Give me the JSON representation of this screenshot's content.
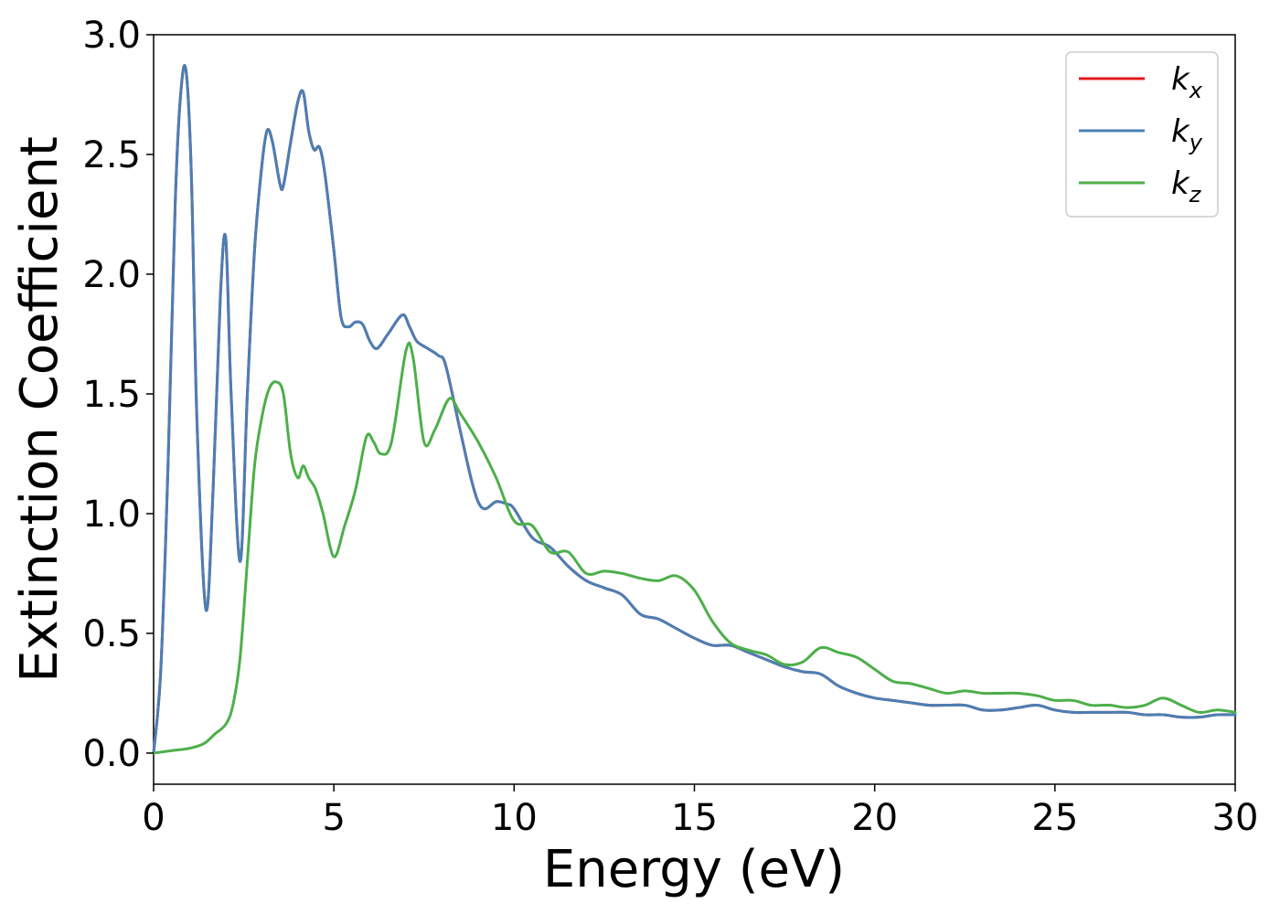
{
  "chart_data": {
    "type": "line",
    "xlabel": "Energy (eV)",
    "ylabel": "Extinction Coefficient",
    "xlim": [
      0,
      30
    ],
    "ylim": [
      -0.13,
      3.0
    ],
    "xticks": [
      0,
      5,
      10,
      15,
      20,
      25,
      30
    ],
    "xtick_labels": [
      "0",
      "5",
      "10",
      "15",
      "20",
      "25",
      "30"
    ],
    "yticks": [
      0.0,
      0.5,
      1.0,
      1.5,
      2.0,
      2.5,
      3.0
    ],
    "ytick_labels": [
      "0.0",
      "0.5",
      "1.0",
      "1.5",
      "2.0",
      "2.5",
      "3.0"
    ],
    "grid": false,
    "legend_position": "top-right",
    "series": [
      {
        "name": "k_x",
        "legend_base": "k",
        "legend_sub": "x",
        "color": "#e41a1c",
        "x": [
          0,
          0.2,
          0.4,
          0.6,
          0.75,
          0.9,
          1.05,
          1.2,
          1.45,
          1.65,
          1.85,
          2.0,
          2.15,
          2.4,
          2.6,
          2.8,
          3.0,
          3.15,
          3.3,
          3.5,
          3.6,
          3.8,
          4.0,
          4.15,
          4.3,
          4.45,
          4.6,
          4.75,
          5.0,
          5.2,
          5.4,
          5.6,
          5.8,
          6.0,
          6.2,
          6.5,
          6.9,
          7.1,
          7.3,
          7.6,
          7.9,
          8.1,
          8.5,
          8.8,
          9.0,
          9.2,
          9.5,
          9.8,
          10.0,
          10.5,
          11.0,
          11.5,
          12.0,
          12.5,
          13.0,
          13.5,
          14.0,
          14.5,
          15.0,
          15.5,
          16.0,
          16.5,
          17.0,
          17.5,
          18.0,
          18.5,
          19.0,
          19.5,
          20.0,
          20.5,
          21.0,
          21.5,
          22.0,
          22.5,
          23.0,
          23.5,
          24.0,
          24.5,
          25.0,
          25.5,
          26.0,
          26.5,
          27.0,
          27.5,
          28.0,
          28.5,
          29.0,
          29.5,
          30.0
        ],
        "y": [
          0.0,
          0.35,
          1.2,
          2.3,
          2.75,
          2.85,
          2.4,
          1.4,
          0.6,
          1.1,
          1.9,
          2.15,
          1.5,
          0.8,
          1.5,
          2.1,
          2.45,
          2.6,
          2.55,
          2.38,
          2.37,
          2.55,
          2.72,
          2.76,
          2.6,
          2.52,
          2.53,
          2.42,
          2.1,
          1.82,
          1.78,
          1.8,
          1.79,
          1.72,
          1.69,
          1.75,
          1.83,
          1.78,
          1.72,
          1.69,
          1.66,
          1.62,
          1.35,
          1.15,
          1.05,
          1.02,
          1.05,
          1.04,
          1.02,
          0.9,
          0.86,
          0.78,
          0.72,
          0.69,
          0.66,
          0.58,
          0.56,
          0.52,
          0.48,
          0.45,
          0.45,
          0.42,
          0.39,
          0.36,
          0.34,
          0.33,
          0.28,
          0.25,
          0.23,
          0.22,
          0.21,
          0.2,
          0.2,
          0.2,
          0.18,
          0.18,
          0.19,
          0.2,
          0.18,
          0.17,
          0.17,
          0.17,
          0.17,
          0.16,
          0.16,
          0.15,
          0.15,
          0.16,
          0.16
        ]
      },
      {
        "name": "k_y",
        "legend_base": "k",
        "legend_sub": "y",
        "color": "#4a7fb5",
        "x": [
          0,
          0.2,
          0.4,
          0.6,
          0.75,
          0.9,
          1.05,
          1.2,
          1.45,
          1.65,
          1.85,
          2.0,
          2.15,
          2.4,
          2.6,
          2.8,
          3.0,
          3.15,
          3.3,
          3.5,
          3.6,
          3.8,
          4.0,
          4.15,
          4.3,
          4.45,
          4.6,
          4.75,
          5.0,
          5.2,
          5.4,
          5.6,
          5.8,
          6.0,
          6.2,
          6.5,
          6.9,
          7.1,
          7.3,
          7.6,
          7.9,
          8.1,
          8.5,
          8.8,
          9.0,
          9.2,
          9.5,
          9.8,
          10.0,
          10.5,
          11.0,
          11.5,
          12.0,
          12.5,
          13.0,
          13.5,
          14.0,
          14.5,
          15.0,
          15.5,
          16.0,
          16.5,
          17.0,
          17.5,
          18.0,
          18.5,
          19.0,
          19.5,
          20.0,
          20.5,
          21.0,
          21.5,
          22.0,
          22.5,
          23.0,
          23.5,
          24.0,
          24.5,
          25.0,
          25.5,
          26.0,
          26.5,
          27.0,
          27.5,
          28.0,
          28.5,
          29.0,
          29.5,
          30.0
        ],
        "y": [
          0.0,
          0.35,
          1.2,
          2.3,
          2.75,
          2.85,
          2.4,
          1.4,
          0.6,
          1.1,
          1.9,
          2.15,
          1.5,
          0.8,
          1.5,
          2.1,
          2.45,
          2.6,
          2.55,
          2.38,
          2.37,
          2.55,
          2.72,
          2.76,
          2.6,
          2.52,
          2.53,
          2.42,
          2.1,
          1.82,
          1.78,
          1.8,
          1.79,
          1.72,
          1.69,
          1.75,
          1.83,
          1.78,
          1.72,
          1.69,
          1.66,
          1.62,
          1.35,
          1.15,
          1.05,
          1.02,
          1.05,
          1.04,
          1.02,
          0.9,
          0.86,
          0.78,
          0.72,
          0.69,
          0.66,
          0.58,
          0.56,
          0.52,
          0.48,
          0.45,
          0.45,
          0.42,
          0.39,
          0.36,
          0.34,
          0.33,
          0.28,
          0.25,
          0.23,
          0.22,
          0.21,
          0.2,
          0.2,
          0.2,
          0.18,
          0.18,
          0.19,
          0.2,
          0.18,
          0.17,
          0.17,
          0.17,
          0.17,
          0.16,
          0.16,
          0.15,
          0.15,
          0.16,
          0.16
        ]
      },
      {
        "name": "k_z",
        "legend_base": "k",
        "legend_sub": "z",
        "color": "#4daf4a",
        "x": [
          0,
          0.5,
          1.0,
          1.4,
          1.7,
          2.0,
          2.2,
          2.4,
          2.6,
          2.8,
          3.0,
          3.2,
          3.4,
          3.6,
          3.8,
          4.0,
          4.15,
          4.3,
          4.5,
          4.7,
          5.0,
          5.3,
          5.6,
          5.9,
          6.1,
          6.3,
          6.6,
          7.0,
          7.2,
          7.5,
          7.8,
          8.2,
          8.5,
          9.0,
          9.5,
          10.0,
          10.5,
          11.0,
          11.5,
          12.0,
          12.5,
          13.0,
          13.5,
          14.0,
          14.5,
          15.0,
          15.5,
          16.0,
          16.5,
          17.0,
          17.5,
          18.0,
          18.5,
          19.0,
          19.5,
          20.0,
          20.5,
          21.0,
          21.5,
          22.0,
          22.5,
          23.0,
          23.5,
          24.0,
          24.5,
          25.0,
          25.5,
          26.0,
          26.5,
          27.0,
          27.5,
          28.0,
          28.5,
          29.0,
          29.5,
          30.0
        ],
        "y": [
          0.0,
          0.01,
          0.02,
          0.04,
          0.08,
          0.12,
          0.2,
          0.4,
          0.8,
          1.2,
          1.4,
          1.52,
          1.55,
          1.5,
          1.25,
          1.15,
          1.2,
          1.15,
          1.1,
          1.0,
          0.82,
          0.95,
          1.1,
          1.32,
          1.3,
          1.25,
          1.3,
          1.68,
          1.65,
          1.3,
          1.35,
          1.48,
          1.42,
          1.3,
          1.15,
          0.97,
          0.95,
          0.84,
          0.84,
          0.75,
          0.76,
          0.75,
          0.73,
          0.72,
          0.74,
          0.68,
          0.55,
          0.46,
          0.43,
          0.41,
          0.37,
          0.38,
          0.44,
          0.42,
          0.4,
          0.35,
          0.3,
          0.29,
          0.27,
          0.25,
          0.26,
          0.25,
          0.25,
          0.25,
          0.24,
          0.22,
          0.22,
          0.2,
          0.2,
          0.19,
          0.2,
          0.23,
          0.2,
          0.17,
          0.18,
          0.17
        ]
      }
    ]
  }
}
